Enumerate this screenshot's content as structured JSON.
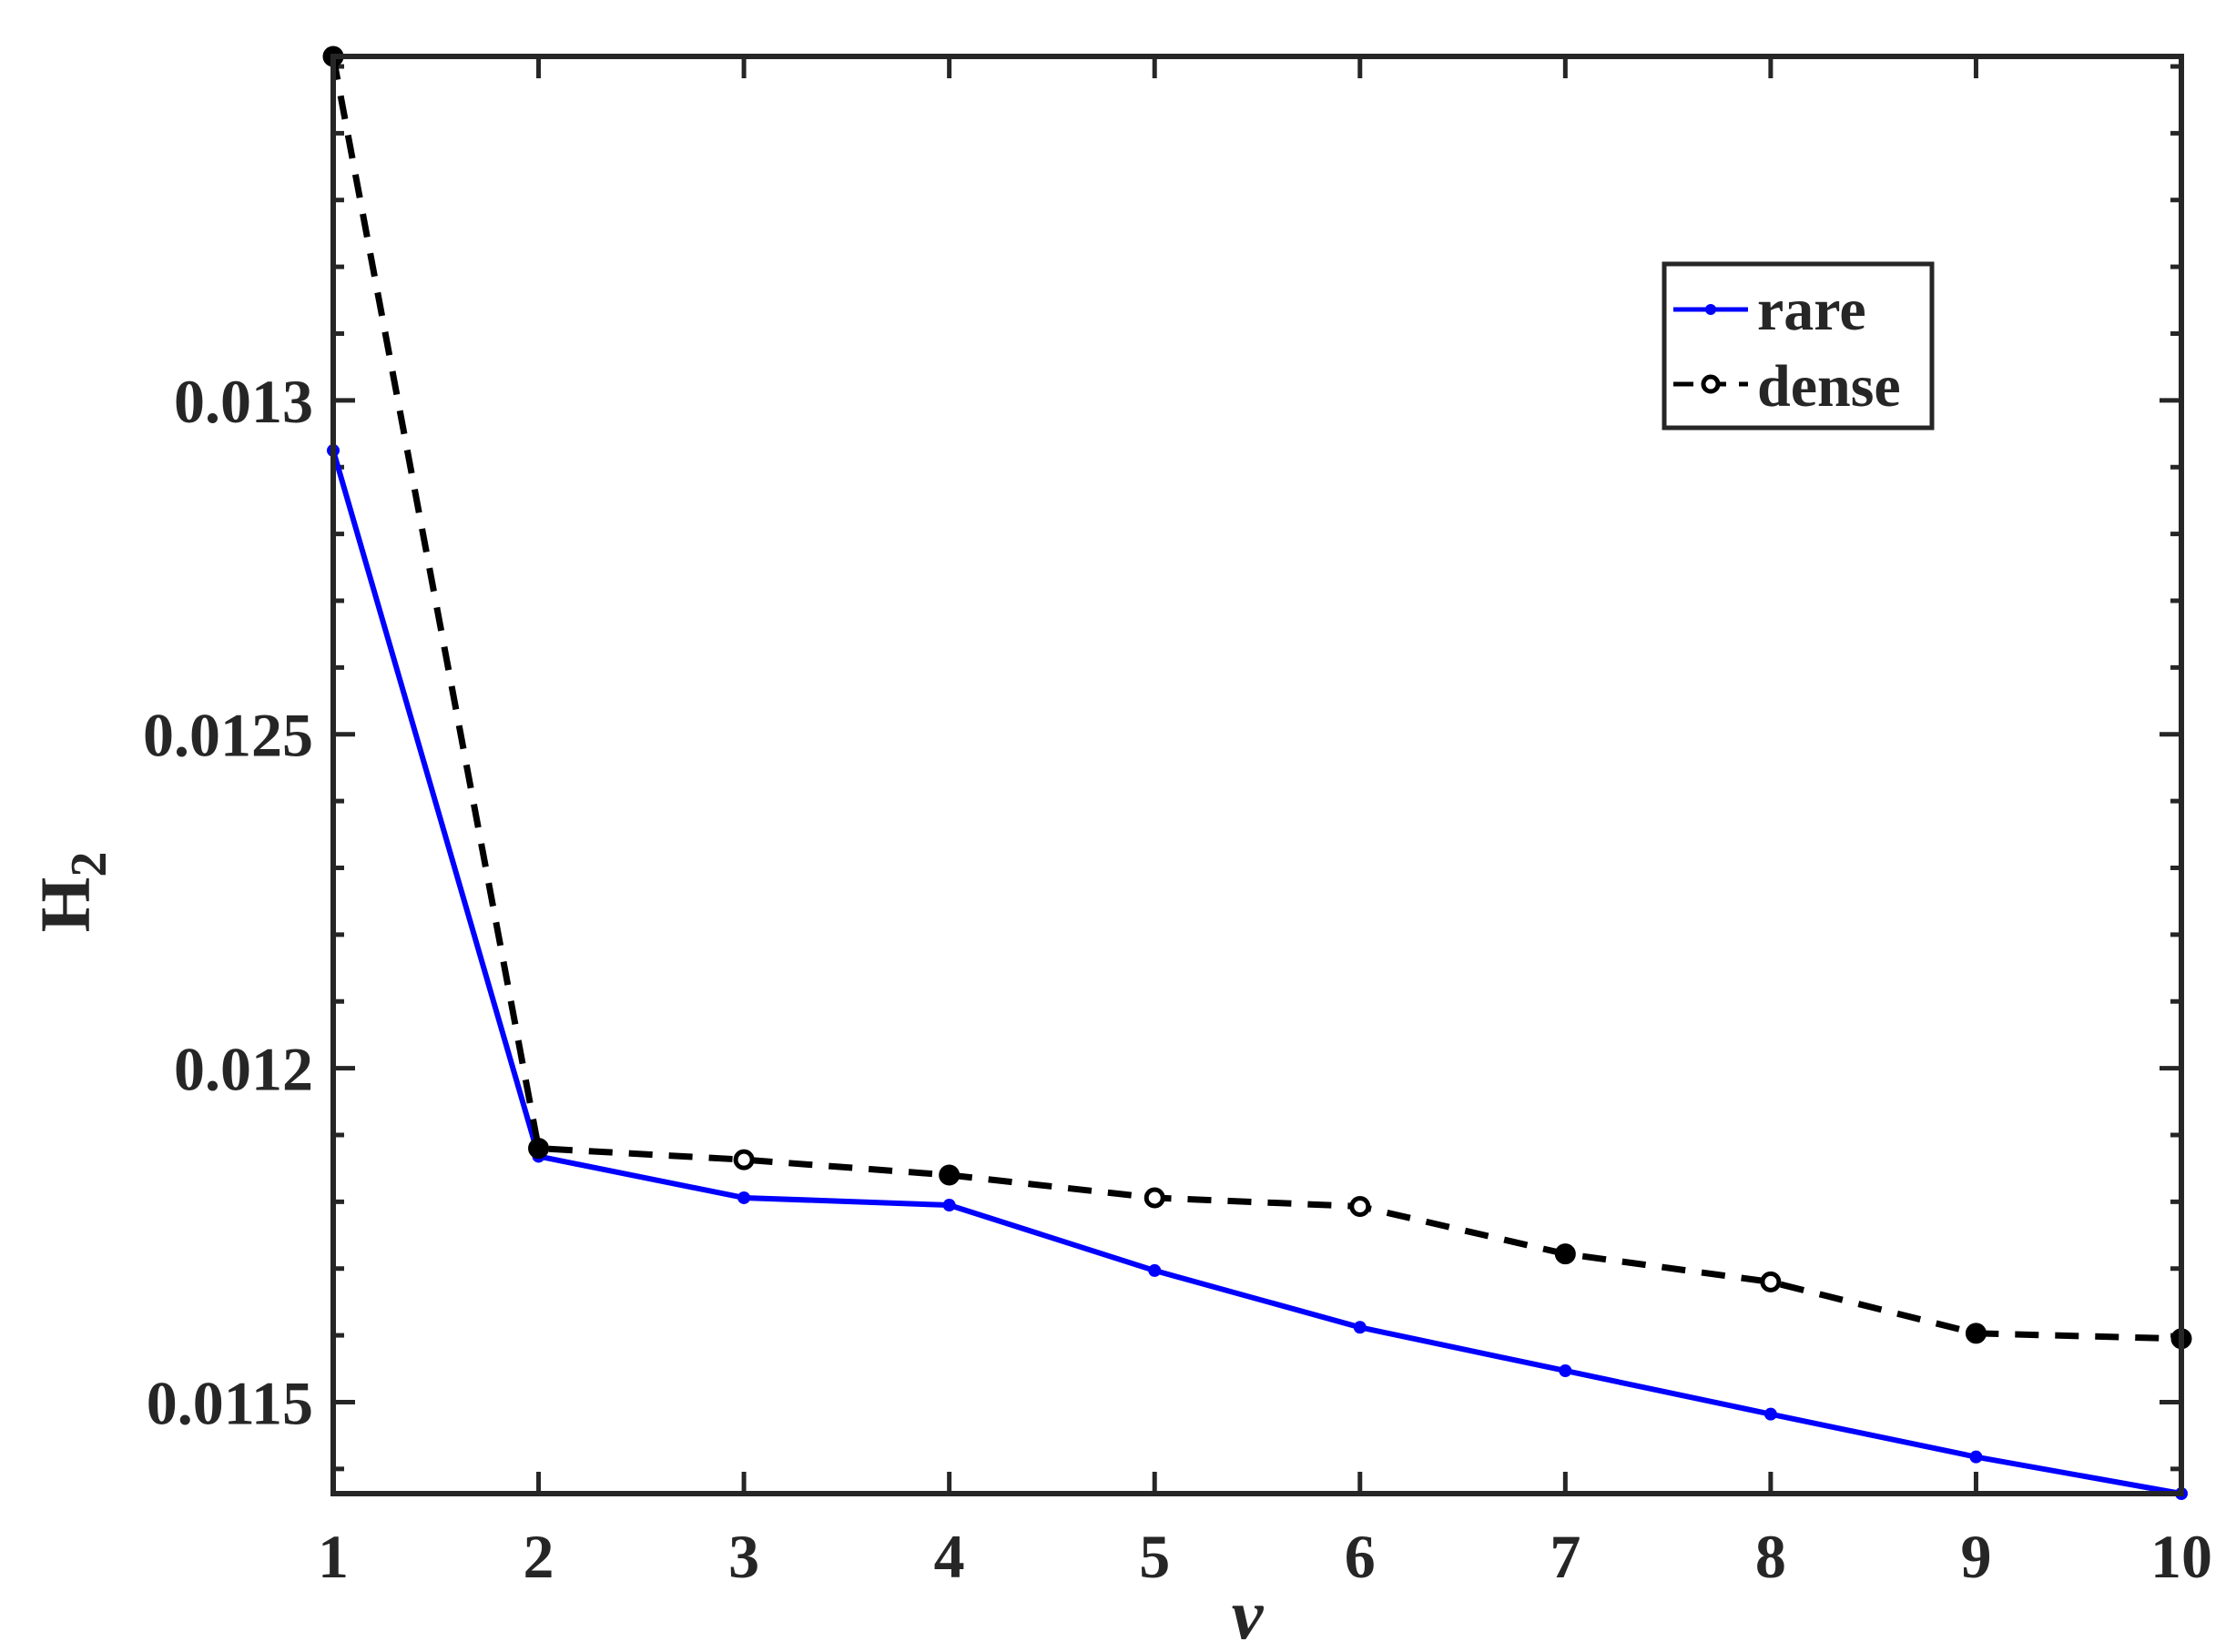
{
  "chart_data": {
    "type": "line",
    "title": "",
    "xlabel": "ν",
    "ylabel": "H",
    "ylabel_subscript": "2",
    "xlim": [
      1,
      10
    ],
    "ylim": [
      0.011363,
      0.013515
    ],
    "x": [
      1,
      2,
      3,
      4,
      5,
      6,
      7,
      8,
      9,
      10
    ],
    "xticks": [
      1,
      2,
      3,
      4,
      5,
      6,
      7,
      8,
      9,
      10
    ],
    "xtick_labels": [
      "1",
      "2",
      "3",
      "4",
      "5",
      "6",
      "7",
      "8",
      "9",
      "10"
    ],
    "yticks": [
      0.0115,
      0.012,
      0.0125,
      0.013
    ],
    "ytick_labels": [
      "0.0115",
      "0.012",
      "0.0125",
      "0.013"
    ],
    "grid": false,
    "legend_position": "top-right",
    "series": [
      {
        "name": "rare",
        "color": "#0000ff",
        "line_style": "solid",
        "marker": "dot",
        "values": [
          0.012925,
          0.011868,
          0.011806,
          0.011795,
          0.011697,
          0.011612,
          0.011547,
          0.011482,
          0.011418,
          0.011363
        ]
      },
      {
        "name": "dense",
        "color": "#000000",
        "line_style": "dashed",
        "marker": "circle",
        "values": [
          0.013515,
          0.01188,
          0.011863,
          0.01184,
          0.011806,
          0.011793,
          0.011722,
          0.01168,
          0.011603,
          0.011595
        ]
      }
    ]
  }
}
